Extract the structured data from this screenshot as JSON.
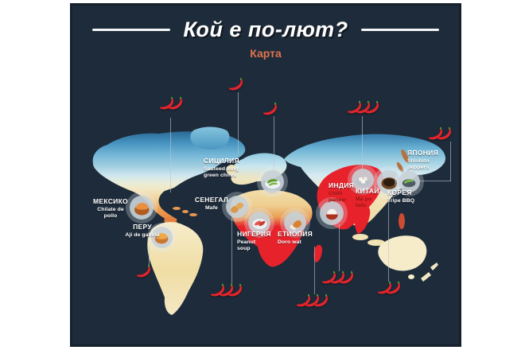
{
  "poster": {
    "title": "Кой е по-лют?",
    "subtitle": "Карта"
  },
  "colors": {
    "panel_bg": "#1e2b3a",
    "panel_border": "#15202c",
    "title_text": "#ffffff",
    "subtitle_accent": "#e0734e",
    "chili_red": "#e3242b",
    "chili_stem_green": "#3aa23a",
    "map_hot_red": "#e7222b",
    "map_cream": "#f2e7c2",
    "map_cold_blue": "#4793c0",
    "leader_line": "#b9c6d2"
  },
  "locations": [
    {
      "name": "МЕКСИКО",
      "dish": "Chilate de\npollo",
      "icon": "stew-pot"
    },
    {
      "name": "ПЕРУ",
      "dish": "Aji de gallina",
      "icon": "stew-bowl"
    },
    {
      "name": "СИЦИЛИЯ",
      "dish": "Sauteed long\ngreen chiles",
      "icon": "green-chiles-plate"
    },
    {
      "name": "СЕНЕГАЛ",
      "dish": "Mafe",
      "icon": "peanut"
    },
    {
      "name": "НИГЕРИЯ",
      "dish": "Peanut\nsoup",
      "icon": "red-peppers-plate"
    },
    {
      "name": "ЕТИОПИЯ",
      "dish": "Doro wat",
      "icon": "chicken-drumstick"
    },
    {
      "name": "ИНДИЯ",
      "dish": "Chilli\npaneer",
      "icon": "rice-bowl"
    },
    {
      "name": "КИТАЙ",
      "dish": "Ma po\ntofu",
      "icon": "tofu-plate"
    },
    {
      "name": "КОРЕЯ",
      "dish": "Tripe BBQ",
      "icon": "dark-bowl"
    },
    {
      "name": "ЯПОНИЯ",
      "dish": "Shishito\npeppers",
      "icon": "shishito-plate"
    }
  ],
  "chili_groups": [
    {
      "count": 2,
      "area": "above-north-america"
    },
    {
      "count": 1,
      "area": "above-north-atlantic"
    },
    {
      "count": 1,
      "area": "above-europe"
    },
    {
      "count": 3,
      "area": "above-central-asia"
    },
    {
      "count": 2,
      "area": "above-japan"
    },
    {
      "count": 1,
      "area": "below-peru"
    },
    {
      "count": 3,
      "area": "below-west-africa"
    },
    {
      "count": 3,
      "area": "below-southern-africa"
    },
    {
      "count": 3,
      "area": "below-india"
    },
    {
      "count": 2,
      "area": "below-australia"
    }
  ]
}
